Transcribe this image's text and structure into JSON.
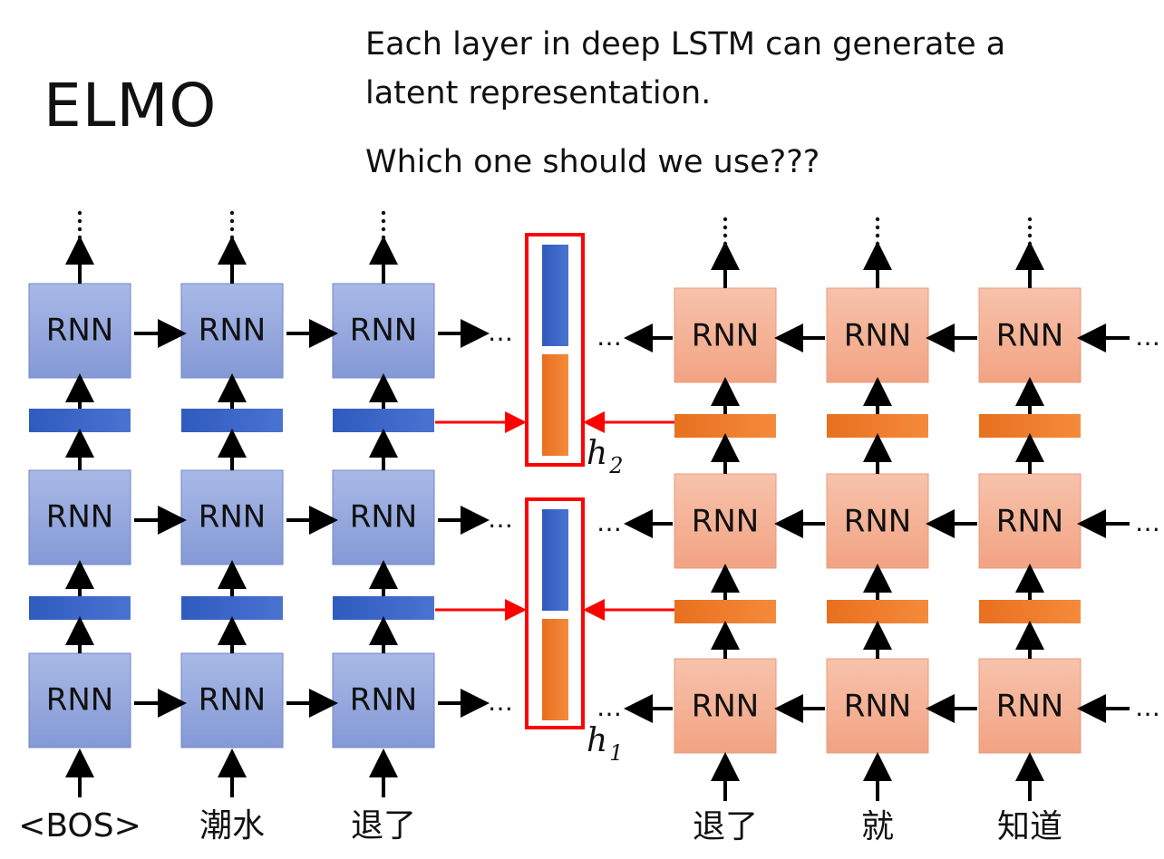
{
  "title": "ELMO",
  "description": {
    "line1": "Each layer in deep LSTM can generate a",
    "line2": "latent representation.",
    "question": "Which one should we use???"
  },
  "cell_label": "RNN",
  "ellipsis": "…",
  "forward_inputs": [
    "<BOS>",
    "潮水",
    "退了"
  ],
  "backward_inputs": [
    "退了",
    "就",
    "知道"
  ],
  "representations": [
    {
      "name": "h",
      "subscript": "2"
    },
    {
      "name": "h",
      "subscript": "1"
    }
  ],
  "colors": {
    "forward_cell": "#8ea3dc",
    "forward_vector": "#3a63c4",
    "backward_cell": "#f4a98a",
    "backward_vector": "#ee7a2c",
    "highlight": "#ff0000"
  }
}
